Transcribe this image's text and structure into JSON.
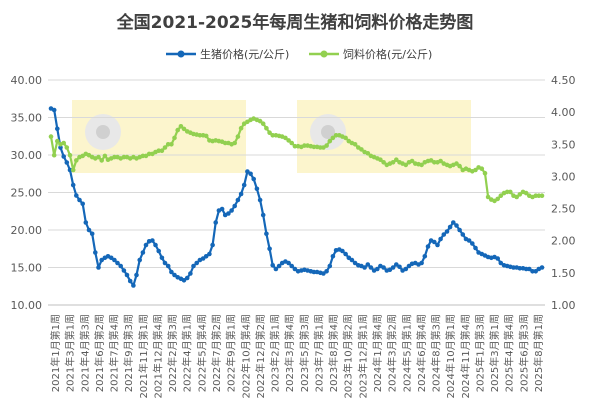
{
  "chart_data": {
    "type": "line",
    "title": "全国2021-2025年每周生猪和饲料价格走势图",
    "legend_position": "top",
    "grid": true,
    "y_left": {
      "ticks": [
        "10.00",
        "15.00",
        "20.00",
        "25.00",
        "30.00",
        "35.00",
        "40.00"
      ],
      "range": [
        10,
        40
      ]
    },
    "y_right": {
      "ticks": [
        "1.00",
        "1.50",
        "2.00",
        "2.50",
        "3.00",
        "3.50",
        "4.00",
        "4.50"
      ],
      "range": [
        1.0,
        4.5
      ]
    },
    "x_labels": [
      "2021年1月第1周",
      "2021年3月第1周",
      "2021年4月第3周",
      "2021年6月第2周",
      "2021年7月第4周",
      "2021年9月第3周",
      "2021年11月第1周",
      "2021年12月第4周",
      "2022年2月第3周",
      "2022年4月第1周",
      "2022年5月第4周",
      "2022年7月第2周",
      "2022年9月第1周",
      "2022年10月第4周",
      "2022年12月第2周",
      "2023年2月第1周",
      "2023年3月第4周",
      "2023年5月第3周",
      "2023年7月第1周",
      "2023年8月第4周",
      "2023年10月第2周",
      "2023年12月第1周",
      "2024年1月第4周",
      "2024年3月第2周",
      "2024年5月第1周",
      "2024年6月第4周",
      "2024年8月第3周",
      "2024年10月第1周",
      "2024年11月第4周",
      "2025年1月第3周",
      "2025年3月第1周",
      "2025年4月第4周",
      "2025年6月第3周",
      "2025年8月第1周"
    ],
    "series": [
      {
        "name": "生猪价格(元/公斤)",
        "axis": "left",
        "color": "#1467b8",
        "points": [
          [
            0,
            36.2
          ],
          [
            1,
            36.0
          ],
          [
            2,
            33.5
          ],
          [
            3,
            31.0
          ],
          [
            4,
            29.8
          ],
          [
            5,
            29.0
          ],
          [
            6,
            28.0
          ],
          [
            7,
            26.0
          ],
          [
            8,
            24.6
          ],
          [
            9,
            24.0
          ],
          [
            10,
            23.5
          ],
          [
            11,
            21.0
          ],
          [
            12,
            20.0
          ],
          [
            13,
            19.5
          ],
          [
            14,
            17.0
          ],
          [
            15,
            15.0
          ],
          [
            16,
            16.0
          ],
          [
            17,
            16.3
          ],
          [
            18,
            16.5
          ],
          [
            19,
            16.3
          ],
          [
            20,
            16.0
          ],
          [
            21,
            15.6
          ],
          [
            22,
            15.2
          ],
          [
            23,
            14.6
          ],
          [
            24,
            14.0
          ],
          [
            25,
            13.2
          ],
          [
            26,
            12.6
          ],
          [
            27,
            14.0
          ],
          [
            28,
            16.0
          ],
          [
            29,
            17.0
          ],
          [
            30,
            18.0
          ],
          [
            31,
            18.5
          ],
          [
            32,
            18.6
          ],
          [
            33,
            18.0
          ],
          [
            34,
            17.2
          ],
          [
            35,
            16.3
          ],
          [
            36,
            15.6
          ],
          [
            37,
            15.2
          ],
          [
            38,
            14.4
          ],
          [
            39,
            14.0
          ],
          [
            40,
            13.7
          ],
          [
            41,
            13.5
          ],
          [
            42,
            13.3
          ],
          [
            43,
            13.6
          ],
          [
            44,
            14.2
          ],
          [
            45,
            15.2
          ],
          [
            46,
            15.6
          ],
          [
            47,
            16.0
          ],
          [
            48,
            16.2
          ],
          [
            49,
            16.5
          ],
          [
            50,
            16.8
          ],
          [
            51,
            18.0
          ],
          [
            52,
            21.0
          ],
          [
            53,
            22.6
          ],
          [
            54,
            22.8
          ],
          [
            55,
            22.0
          ],
          [
            56,
            22.2
          ],
          [
            57,
            22.6
          ],
          [
            58,
            23.2
          ],
          [
            59,
            24.0
          ],
          [
            60,
            24.8
          ],
          [
            61,
            26.0
          ],
          [
            62,
            27.8
          ],
          [
            63,
            27.5
          ],
          [
            64,
            26.8
          ],
          [
            65,
            25.5
          ],
          [
            66,
            24.0
          ],
          [
            67,
            22.0
          ],
          [
            68,
            19.5
          ],
          [
            69,
            17.5
          ],
          [
            70,
            15.3
          ],
          [
            71,
            14.8
          ],
          [
            72,
            15.2
          ],
          [
            73,
            15.6
          ],
          [
            74,
            15.8
          ],
          [
            75,
            15.6
          ],
          [
            76,
            15.2
          ],
          [
            77,
            14.8
          ],
          [
            78,
            14.5
          ],
          [
            79,
            14.6
          ],
          [
            80,
            14.7
          ],
          [
            81,
            14.6
          ],
          [
            82,
            14.5
          ],
          [
            83,
            14.4
          ],
          [
            84,
            14.4
          ],
          [
            85,
            14.3
          ],
          [
            86,
            14.2
          ],
          [
            87,
            14.5
          ],
          [
            88,
            15.2
          ],
          [
            89,
            16.5
          ],
          [
            90,
            17.3
          ],
          [
            91,
            17.4
          ],
          [
            92,
            17.2
          ],
          [
            93,
            16.8
          ],
          [
            94,
            16.3
          ],
          [
            95,
            16.0
          ],
          [
            96,
            15.6
          ],
          [
            97,
            15.3
          ],
          [
            98,
            15.2
          ],
          [
            99,
            15.0
          ],
          [
            100,
            15.4
          ],
          [
            101,
            15.0
          ],
          [
            102,
            14.6
          ],
          [
            103,
            14.8
          ],
          [
            104,
            15.2
          ],
          [
            105,
            15.0
          ],
          [
            106,
            14.6
          ],
          [
            107,
            14.7
          ],
          [
            108,
            15.0
          ],
          [
            109,
            15.4
          ],
          [
            110,
            15.1
          ],
          [
            111,
            14.6
          ],
          [
            112,
            14.8
          ],
          [
            113,
            15.2
          ],
          [
            114,
            15.5
          ],
          [
            115,
            15.6
          ],
          [
            116,
            15.4
          ],
          [
            117,
            15.6
          ],
          [
            118,
            16.5
          ],
          [
            119,
            17.8
          ],
          [
            120,
            18.6
          ],
          [
            121,
            18.4
          ],
          [
            122,
            18.0
          ],
          [
            123,
            18.8
          ],
          [
            124,
            19.4
          ],
          [
            125,
            19.8
          ],
          [
            126,
            20.4
          ],
          [
            127,
            21.0
          ],
          [
            128,
            20.6
          ],
          [
            129,
            20.0
          ],
          [
            130,
            19.4
          ],
          [
            131,
            18.8
          ],
          [
            132,
            18.6
          ],
          [
            133,
            18.2
          ],
          [
            134,
            17.6
          ],
          [
            135,
            17.0
          ],
          [
            136,
            16.8
          ],
          [
            137,
            16.6
          ],
          [
            138,
            16.4
          ],
          [
            139,
            16.3
          ],
          [
            140,
            16.4
          ],
          [
            141,
            16.2
          ],
          [
            142,
            15.6
          ],
          [
            143,
            15.3
          ],
          [
            144,
            15.2
          ],
          [
            145,
            15.1
          ],
          [
            146,
            15.0
          ],
          [
            147,
            15.0
          ],
          [
            148,
            14.9
          ],
          [
            149,
            14.9
          ],
          [
            150,
            14.8
          ],
          [
            151,
            14.8
          ],
          [
            152,
            14.5
          ],
          [
            153,
            14.5
          ],
          [
            154,
            14.8
          ],
          [
            155,
            15.0
          ]
        ]
      },
      {
        "name": "饲料价格(元/公斤)",
        "axis": "right",
        "color": "#92d050",
        "points": [
          [
            0,
            3.62
          ],
          [
            1,
            3.33
          ],
          [
            2,
            3.55
          ],
          [
            3,
            3.5
          ],
          [
            4,
            3.52
          ],
          [
            5,
            3.45
          ],
          [
            6,
            3.33
          ],
          [
            7,
            3.1
          ],
          [
            8,
            3.25
          ],
          [
            9,
            3.3
          ],
          [
            10,
            3.32
          ],
          [
            11,
            3.35
          ],
          [
            12,
            3.33
          ],
          [
            13,
            3.3
          ],
          [
            14,
            3.28
          ],
          [
            15,
            3.3
          ],
          [
            16,
            3.25
          ],
          [
            17,
            3.32
          ],
          [
            18,
            3.26
          ],
          [
            19,
            3.28
          ],
          [
            20,
            3.3
          ],
          [
            21,
            3.3
          ],
          [
            22,
            3.28
          ],
          [
            23,
            3.3
          ],
          [
            24,
            3.3
          ],
          [
            25,
            3.28
          ],
          [
            26,
            3.3
          ],
          [
            27,
            3.28
          ],
          [
            28,
            3.3
          ],
          [
            29,
            3.32
          ],
          [
            30,
            3.32
          ],
          [
            31,
            3.35
          ],
          [
            32,
            3.35
          ],
          [
            33,
            3.38
          ],
          [
            34,
            3.4
          ],
          [
            35,
            3.4
          ],
          [
            36,
            3.45
          ],
          [
            37,
            3.5
          ],
          [
            38,
            3.5
          ],
          [
            39,
            3.6
          ],
          [
            40,
            3.72
          ],
          [
            41,
            3.78
          ],
          [
            42,
            3.74
          ],
          [
            43,
            3.7
          ],
          [
            44,
            3.68
          ],
          [
            45,
            3.66
          ],
          [
            46,
            3.65
          ],
          [
            47,
            3.64
          ],
          [
            48,
            3.64
          ],
          [
            49,
            3.63
          ],
          [
            50,
            3.56
          ],
          [
            51,
            3.55
          ],
          [
            52,
            3.56
          ],
          [
            53,
            3.55
          ],
          [
            54,
            3.54
          ],
          [
            55,
            3.52
          ],
          [
            56,
            3.52
          ],
          [
            57,
            3.5
          ],
          [
            58,
            3.52
          ],
          [
            59,
            3.62
          ],
          [
            60,
            3.75
          ],
          [
            61,
            3.82
          ],
          [
            62,
            3.85
          ],
          [
            63,
            3.88
          ],
          [
            64,
            3.9
          ],
          [
            65,
            3.88
          ],
          [
            66,
            3.86
          ],
          [
            67,
            3.82
          ],
          [
            68,
            3.75
          ],
          [
            69,
            3.68
          ],
          [
            70,
            3.64
          ],
          [
            71,
            3.64
          ],
          [
            72,
            3.63
          ],
          [
            73,
            3.62
          ],
          [
            74,
            3.6
          ],
          [
            75,
            3.56
          ],
          [
            76,
            3.52
          ],
          [
            77,
            3.47
          ],
          [
            78,
            3.47
          ],
          [
            79,
            3.46
          ],
          [
            80,
            3.48
          ],
          [
            81,
            3.48
          ],
          [
            82,
            3.47
          ],
          [
            83,
            3.46
          ],
          [
            84,
            3.46
          ],
          [
            85,
            3.45
          ],
          [
            86,
            3.45
          ],
          [
            87,
            3.48
          ],
          [
            88,
            3.55
          ],
          [
            89,
            3.6
          ],
          [
            90,
            3.64
          ],
          [
            91,
            3.64
          ],
          [
            92,
            3.62
          ],
          [
            93,
            3.6
          ],
          [
            94,
            3.55
          ],
          [
            95,
            3.52
          ],
          [
            96,
            3.5
          ],
          [
            97,
            3.45
          ],
          [
            98,
            3.42
          ],
          [
            99,
            3.38
          ],
          [
            100,
            3.36
          ],
          [
            101,
            3.32
          ],
          [
            102,
            3.3
          ],
          [
            103,
            3.28
          ],
          [
            104,
            3.26
          ],
          [
            105,
            3.22
          ],
          [
            106,
            3.18
          ],
          [
            107,
            3.2
          ],
          [
            108,
            3.22
          ],
          [
            109,
            3.26
          ],
          [
            110,
            3.22
          ],
          [
            111,
            3.2
          ],
          [
            112,
            3.18
          ],
          [
            113,
            3.22
          ],
          [
            114,
            3.24
          ],
          [
            115,
            3.2
          ],
          [
            116,
            3.19
          ],
          [
            117,
            3.18
          ],
          [
            null,
            null
          ],
          [
            118,
            3.22
          ],
          [
            119,
            3.24
          ],
          [
            120,
            3.25
          ],
          [
            121,
            3.22
          ],
          [
            122,
            3.22
          ],
          [
            123,
            3.24
          ],
          [
            124,
            3.2
          ],
          [
            125,
            3.18
          ],
          [
            126,
            3.16
          ],
          [
            127,
            3.18
          ],
          [
            128,
            3.2
          ],
          [
            129,
            3.16
          ],
          [
            130,
            3.1
          ],
          [
            131,
            3.12
          ],
          [
            132,
            3.1
          ],
          [
            133,
            3.08
          ],
          [
            134,
            3.1
          ],
          [
            135,
            3.14
          ],
          [
            136,
            3.12
          ],
          [
            137,
            3.05
          ],
          [
            138,
            2.68
          ],
          [
            139,
            2.64
          ],
          [
            140,
            2.62
          ],
          [
            141,
            2.65
          ],
          [
            142,
            2.7
          ],
          [
            143,
            2.74
          ],
          [
            144,
            2.76
          ],
          [
            145,
            2.76
          ],
          [
            146,
            2.7
          ],
          [
            147,
            2.68
          ],
          [
            148,
            2.72
          ],
          [
            149,
            2.76
          ],
          [
            150,
            2.74
          ],
          [
            151,
            2.7
          ],
          [
            152,
            2.68
          ],
          [
            153,
            2.7
          ],
          [
            154,
            2.7
          ],
          [
            155,
            2.7
          ]
        ]
      }
    ]
  }
}
